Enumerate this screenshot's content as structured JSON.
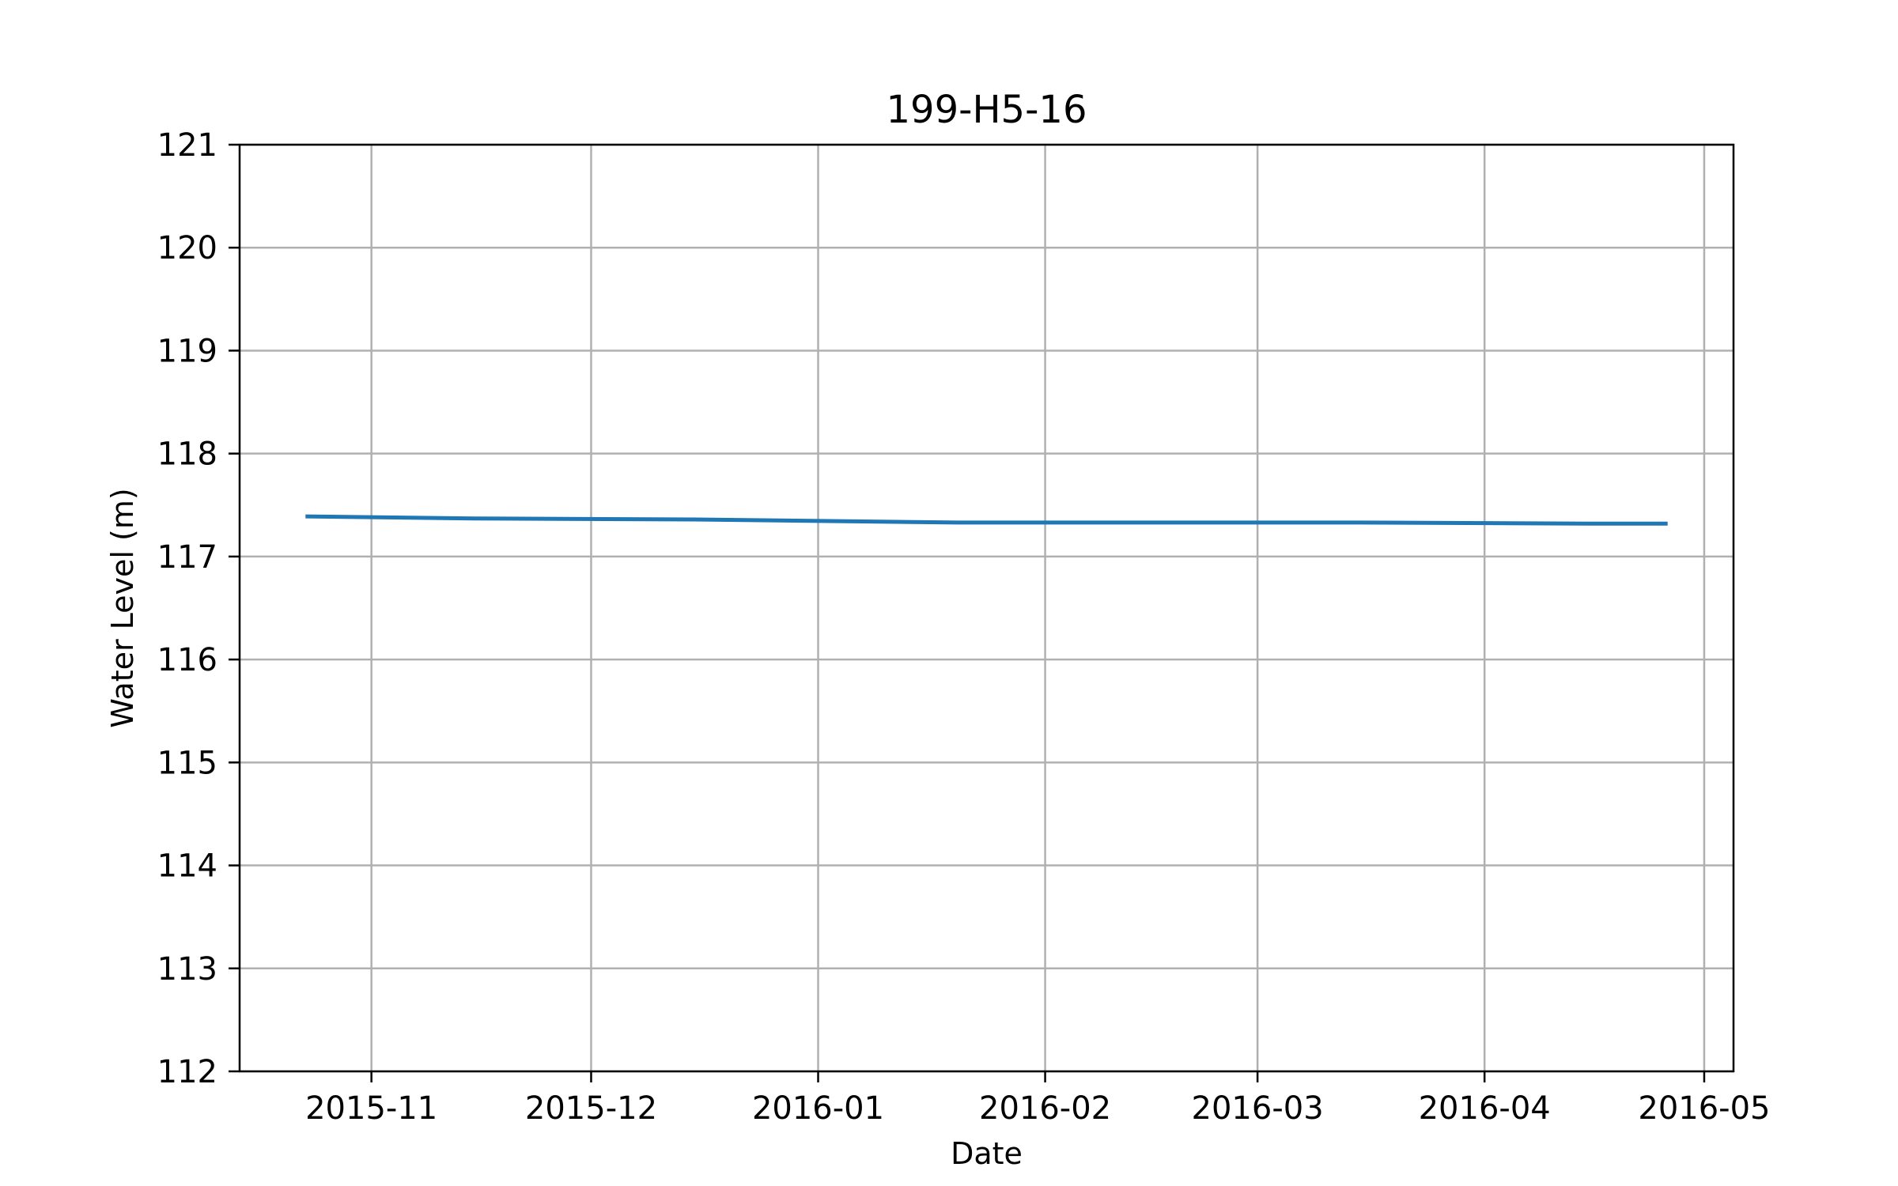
{
  "chart_data": {
    "type": "line",
    "title": "199-H5-16",
    "xlabel": "Date",
    "ylabel": "Water Level (m)",
    "x_type": "date",
    "xlim": [
      "2015-10-14",
      "2016-05-05"
    ],
    "ylim": [
      112,
      121
    ],
    "x_ticks": [
      "2015-11-01",
      "2015-12-01",
      "2016-01-01",
      "2016-02-01",
      "2016-03-01",
      "2016-04-01",
      "2016-05-01"
    ],
    "x_tick_labels": [
      "2015-11",
      "2015-12",
      "2016-01",
      "2016-02",
      "2016-03",
      "2016-04",
      "2016-05"
    ],
    "y_ticks": [
      112,
      113,
      114,
      115,
      116,
      117,
      118,
      119,
      120,
      121
    ],
    "y_tick_labels": [
      "112",
      "113",
      "114",
      "115",
      "116",
      "117",
      "118",
      "119",
      "120",
      "121"
    ],
    "grid": true,
    "legend": "none",
    "series": [
      {
        "color": "#1f77b4",
        "x": [
          "2015-10-23",
          "2015-11-15",
          "2015-12-15",
          "2016-01-20",
          "2016-02-15",
          "2016-03-15",
          "2016-04-15",
          "2016-04-26"
        ],
        "y": [
          117.39,
          117.37,
          117.36,
          117.33,
          117.33,
          117.33,
          117.32,
          117.32
        ]
      }
    ]
  }
}
